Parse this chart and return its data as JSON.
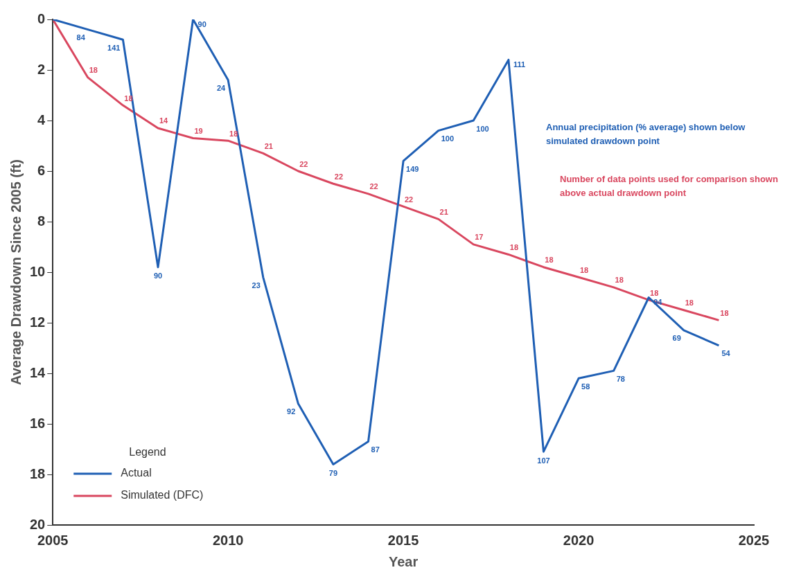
{
  "chart_data": {
    "type": "line",
    "xlabel": "Year",
    "ylabel": "Average Drawdown Since 2005 (ft)",
    "legend_title": "Legend",
    "x": [
      2005,
      2006,
      2007,
      2008,
      2009,
      2010,
      2011,
      2012,
      2013,
      2014,
      2015,
      2016,
      2017,
      2018,
      2019,
      2020,
      2021,
      2022,
      2023,
      2024
    ],
    "series": [
      {
        "name": "Actual",
        "color": "#1f5fb4",
        "values": [
          0,
          0.4,
          0.8,
          9.8,
          0,
          2.4,
          10.2,
          15.2,
          17.6,
          16.7,
          5.6,
          4.4,
          4.0,
          1.6,
          17.1,
          14.2,
          13.9,
          11.0,
          12.3,
          12.9
        ]
      },
      {
        "name": "Simulated (DFC)",
        "color": "#d9475f",
        "values": [
          0,
          2.3,
          3.4,
          4.3,
          4.7,
          4.8,
          5.3,
          6.0,
          6.5,
          6.9,
          7.4,
          7.9,
          8.9,
          9.3,
          9.8,
          10.2,
          10.6,
          11.1,
          11.5,
          11.9
        ]
      }
    ],
    "xlim": [
      2005,
      2025
    ],
    "xticks": [
      2005,
      2010,
      2015,
      2020,
      2025
    ],
    "ylim": [
      20,
      0
    ],
    "yticks": [
      0,
      2,
      4,
      6,
      8,
      10,
      12,
      14,
      16,
      18,
      20
    ],
    "grid": false,
    "marker": "none",
    "line_style": "solid",
    "legend": "bottom left",
    "annotations": [
      "Annual precipitation (% average) shown below simulated drawdown point",
      "Number of data points used for comparison shown above actual drawdown point",
      {
        "text": "84",
        "x": 2006,
        "y": 0.4
      },
      {
        "text": "141",
        "x": 2007,
        "y": 0.8
      },
      {
        "text": "90",
        "x": 2008,
        "y": 9.8
      },
      {
        "text": "90",
        "x": 2009,
        "y": 0
      },
      {
        "text": "24",
        "x": 2010,
        "y": 2.4
      },
      {
        "text": "23",
        "x": 2011,
        "y": 10.2
      },
      {
        "text": "92",
        "x": 2012,
        "y": 15.2
      },
      {
        "text": "79",
        "x": 2013,
        "y": 17.6
      },
      {
        "text": "87",
        "x": 2014,
        "y": 16.7
      },
      {
        "text": "149",
        "x": 2015,
        "y": 5.6
      },
      {
        "text": "100",
        "x": 2016,
        "y": 4.4
      },
      {
        "text": "100",
        "x": 2017,
        "y": 4.0
      },
      {
        "text": "111",
        "x": 2018,
        "y": 1.6
      },
      {
        "text": "107",
        "x": 2019,
        "y": 17.1
      },
      {
        "text": "58",
        "x": 2020,
        "y": 14.2
      },
      {
        "text": "78",
        "x": 2021,
        "y": 13.9
      },
      {
        "text": "94",
        "x": 2022,
        "y": 11.0
      },
      {
        "text": "69",
        "x": 2023,
        "y": 12.3
      },
      {
        "text": "54",
        "x": 2024,
        "y": 12.9
      },
      {
        "text": "18",
        "x": 2006,
        "y": 2.3
      },
      {
        "text": "18",
        "x": 2007,
        "y": 3.4
      },
      {
        "text": "14",
        "x": 2008,
        "y": 4.3
      },
      {
        "text": "19",
        "x": 2009,
        "y": 4.7
      },
      {
        "text": "18",
        "x": 2010,
        "y": 4.8
      },
      {
        "text": "21",
        "x": 2011,
        "y": 5.3
      },
      {
        "text": "22",
        "x": 2012,
        "y": 6.0
      },
      {
        "text": "22",
        "x": 2013,
        "y": 6.5
      },
      {
        "text": "22",
        "x": 2014,
        "y": 6.9
      },
      {
        "text": "22",
        "x": 2015,
        "y": 7.4
      },
      {
        "text": "21",
        "x": 2016,
        "y": 7.9
      },
      {
        "text": "17",
        "x": 2017,
        "y": 8.9
      },
      {
        "text": "18",
        "x": 2018,
        "y": 9.3
      },
      {
        "text": "18",
        "x": 2019,
        "y": 9.8
      },
      {
        "text": "18",
        "x": 2020,
        "y": 10.2
      },
      {
        "text": "18",
        "x": 2021,
        "y": 10.6
      },
      {
        "text": "18",
        "x": 2022,
        "y": 11.1
      },
      {
        "text": "18",
        "x": 2023,
        "y": 11.5
      },
      {
        "text": "18",
        "x": 2024,
        "y": 11.9
      }
    ]
  }
}
